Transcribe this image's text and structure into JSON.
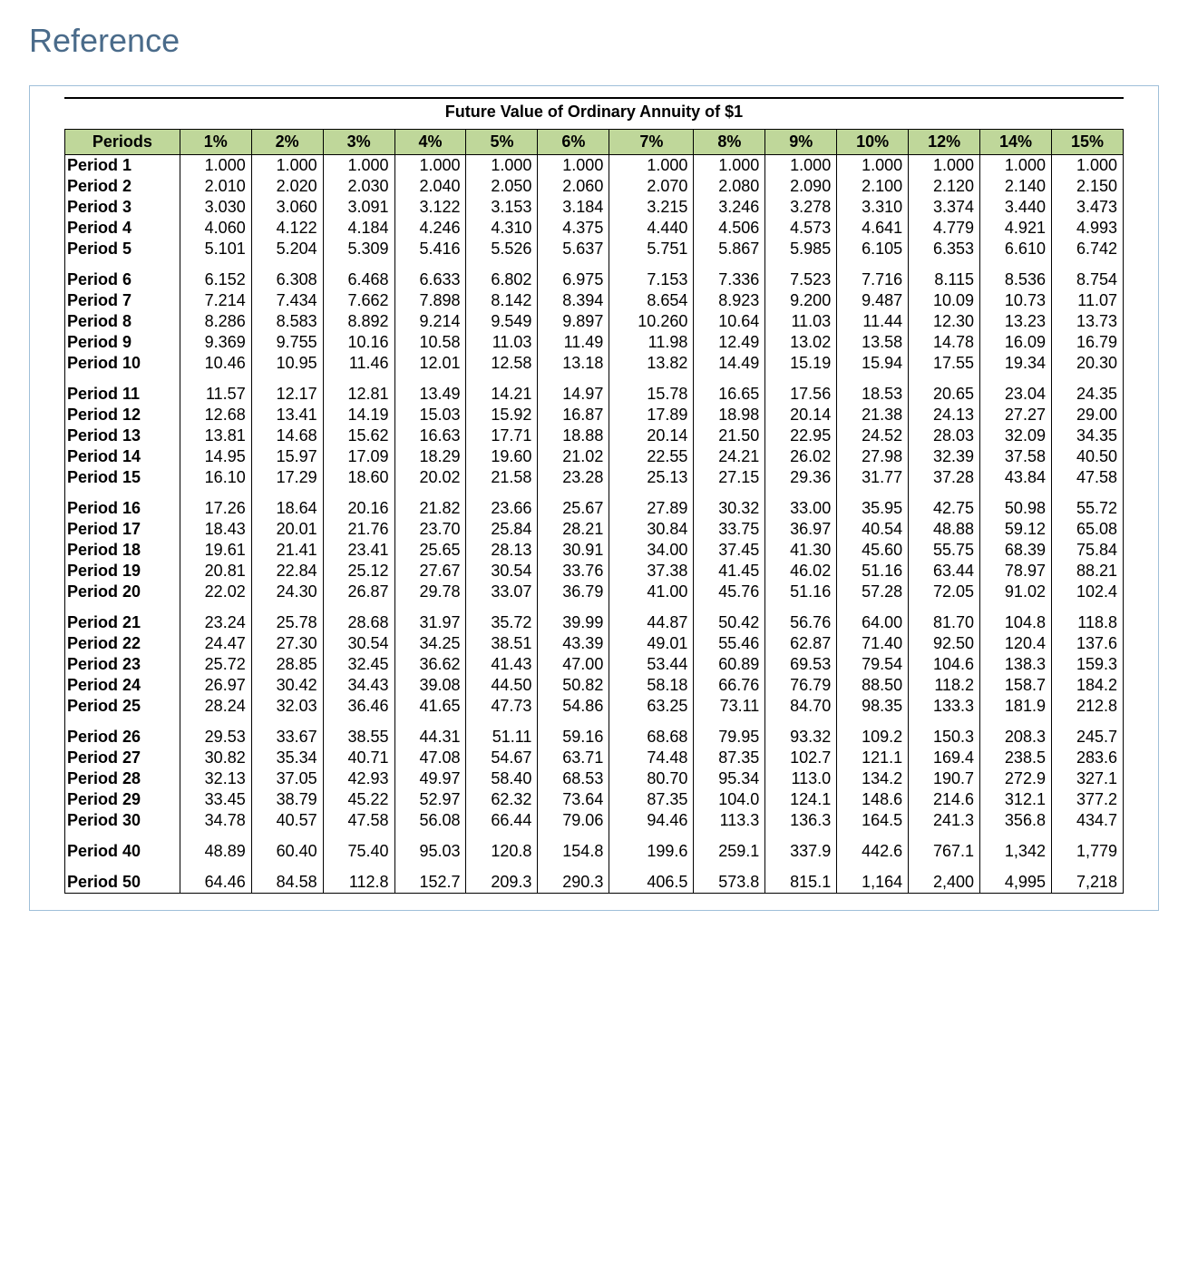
{
  "page_heading": "Reference",
  "table": {
    "title": "Future Value of Ordinary Annuity of $1",
    "header_bg": "#bfd79a",
    "periods_header": "Periods",
    "columns": [
      "1%",
      "2%",
      "3%",
      "4%",
      "5%",
      "6%",
      "7%",
      "8%",
      "9%",
      "10%",
      "12%",
      "14%",
      "15%"
    ],
    "groups": [
      [
        {
          "label": "Period 1",
          "values": [
            "1.000",
            "1.000",
            "1.000",
            "1.000",
            "1.000",
            "1.000",
            "1.000",
            "1.000",
            "1.000",
            "1.000",
            "1.000",
            "1.000",
            "1.000"
          ]
        },
        {
          "label": "Period 2",
          "values": [
            "2.010",
            "2.020",
            "2.030",
            "2.040",
            "2.050",
            "2.060",
            "2.070",
            "2.080",
            "2.090",
            "2.100",
            "2.120",
            "2.140",
            "2.150"
          ]
        },
        {
          "label": "Period 3",
          "values": [
            "3.030",
            "3.060",
            "3.091",
            "3.122",
            "3.153",
            "3.184",
            "3.215",
            "3.246",
            "3.278",
            "3.310",
            "3.374",
            "3.440",
            "3.473"
          ]
        },
        {
          "label": "Period 4",
          "values": [
            "4.060",
            "4.122",
            "4.184",
            "4.246",
            "4.310",
            "4.375",
            "4.440",
            "4.506",
            "4.573",
            "4.641",
            "4.779",
            "4.921",
            "4.993"
          ]
        },
        {
          "label": "Period 5",
          "values": [
            "5.101",
            "5.204",
            "5.309",
            "5.416",
            "5.526",
            "5.637",
            "5.751",
            "5.867",
            "5.985",
            "6.105",
            "6.353",
            "6.610",
            "6.742"
          ]
        }
      ],
      [
        {
          "label": "Period 6",
          "values": [
            "6.152",
            "6.308",
            "6.468",
            "6.633",
            "6.802",
            "6.975",
            "7.153",
            "7.336",
            "7.523",
            "7.716",
            "8.115",
            "8.536",
            "8.754"
          ]
        },
        {
          "label": "Period 7",
          "values": [
            "7.214",
            "7.434",
            "7.662",
            "7.898",
            "8.142",
            "8.394",
            "8.654",
            "8.923",
            "9.200",
            "9.487",
            "10.09",
            "10.73",
            "11.07"
          ]
        },
        {
          "label": "Period 8",
          "values": [
            "8.286",
            "8.583",
            "8.892",
            "9.214",
            "9.549",
            "9.897",
            "10.260",
            "10.64",
            "11.03",
            "11.44",
            "12.30",
            "13.23",
            "13.73"
          ]
        },
        {
          "label": "Period 9",
          "values": [
            "9.369",
            "9.755",
            "10.16",
            "10.58",
            "11.03",
            "11.49",
            "11.98",
            "12.49",
            "13.02",
            "13.58",
            "14.78",
            "16.09",
            "16.79"
          ]
        },
        {
          "label": "Period 10",
          "values": [
            "10.46",
            "10.95",
            "11.46",
            "12.01",
            "12.58",
            "13.18",
            "13.82",
            "14.49",
            "15.19",
            "15.94",
            "17.55",
            "19.34",
            "20.30"
          ]
        }
      ],
      [
        {
          "label": "Period 11",
          "values": [
            "11.57",
            "12.17",
            "12.81",
            "13.49",
            "14.21",
            "14.97",
            "15.78",
            "16.65",
            "17.56",
            "18.53",
            "20.65",
            "23.04",
            "24.35"
          ]
        },
        {
          "label": "Period 12",
          "values": [
            "12.68",
            "13.41",
            "14.19",
            "15.03",
            "15.92",
            "16.87",
            "17.89",
            "18.98",
            "20.14",
            "21.38",
            "24.13",
            "27.27",
            "29.00"
          ]
        },
        {
          "label": "Period 13",
          "values": [
            "13.81",
            "14.68",
            "15.62",
            "16.63",
            "17.71",
            "18.88",
            "20.14",
            "21.50",
            "22.95",
            "24.52",
            "28.03",
            "32.09",
            "34.35"
          ]
        },
        {
          "label": "Period 14",
          "values": [
            "14.95",
            "15.97",
            "17.09",
            "18.29",
            "19.60",
            "21.02",
            "22.55",
            "24.21",
            "26.02",
            "27.98",
            "32.39",
            "37.58",
            "40.50"
          ]
        },
        {
          "label": "Period 15",
          "values": [
            "16.10",
            "17.29",
            "18.60",
            "20.02",
            "21.58",
            "23.28",
            "25.13",
            "27.15",
            "29.36",
            "31.77",
            "37.28",
            "43.84",
            "47.58"
          ]
        }
      ],
      [
        {
          "label": "Period 16",
          "values": [
            "17.26",
            "18.64",
            "20.16",
            "21.82",
            "23.66",
            "25.67",
            "27.89",
            "30.32",
            "33.00",
            "35.95",
            "42.75",
            "50.98",
            "55.72"
          ]
        },
        {
          "label": "Period 17",
          "values": [
            "18.43",
            "20.01",
            "21.76",
            "23.70",
            "25.84",
            "28.21",
            "30.84",
            "33.75",
            "36.97",
            "40.54",
            "48.88",
            "59.12",
            "65.08"
          ]
        },
        {
          "label": "Period 18",
          "values": [
            "19.61",
            "21.41",
            "23.41",
            "25.65",
            "28.13",
            "30.91",
            "34.00",
            "37.45",
            "41.30",
            "45.60",
            "55.75",
            "68.39",
            "75.84"
          ]
        },
        {
          "label": "Period 19",
          "values": [
            "20.81",
            "22.84",
            "25.12",
            "27.67",
            "30.54",
            "33.76",
            "37.38",
            "41.45",
            "46.02",
            "51.16",
            "63.44",
            "78.97",
            "88.21"
          ]
        },
        {
          "label": "Period 20",
          "values": [
            "22.02",
            "24.30",
            "26.87",
            "29.78",
            "33.07",
            "36.79",
            "41.00",
            "45.76",
            "51.16",
            "57.28",
            "72.05",
            "91.02",
            "102.4"
          ]
        }
      ],
      [
        {
          "label": "Period 21",
          "values": [
            "23.24",
            "25.78",
            "28.68",
            "31.97",
            "35.72",
            "39.99",
            "44.87",
            "50.42",
            "56.76",
            "64.00",
            "81.70",
            "104.8",
            "118.8"
          ]
        },
        {
          "label": "Period 22",
          "values": [
            "24.47",
            "27.30",
            "30.54",
            "34.25",
            "38.51",
            "43.39",
            "49.01",
            "55.46",
            "62.87",
            "71.40",
            "92.50",
            "120.4",
            "137.6"
          ]
        },
        {
          "label": "Period 23",
          "values": [
            "25.72",
            "28.85",
            "32.45",
            "36.62",
            "41.43",
            "47.00",
            "53.44",
            "60.89",
            "69.53",
            "79.54",
            "104.6",
            "138.3",
            "159.3"
          ]
        },
        {
          "label": "Period 24",
          "values": [
            "26.97",
            "30.42",
            "34.43",
            "39.08",
            "44.50",
            "50.82",
            "58.18",
            "66.76",
            "76.79",
            "88.50",
            "118.2",
            "158.7",
            "184.2"
          ]
        },
        {
          "label": "Period 25",
          "values": [
            "28.24",
            "32.03",
            "36.46",
            "41.65",
            "47.73",
            "54.86",
            "63.25",
            "73.11",
            "84.70",
            "98.35",
            "133.3",
            "181.9",
            "212.8"
          ]
        }
      ],
      [
        {
          "label": "Period 26",
          "values": [
            "29.53",
            "33.67",
            "38.55",
            "44.31",
            "51.11",
            "59.16",
            "68.68",
            "79.95",
            "93.32",
            "109.2",
            "150.3",
            "208.3",
            "245.7"
          ]
        },
        {
          "label": "Period 27",
          "values": [
            "30.82",
            "35.34",
            "40.71",
            "47.08",
            "54.67",
            "63.71",
            "74.48",
            "87.35",
            "102.7",
            "121.1",
            "169.4",
            "238.5",
            "283.6"
          ]
        },
        {
          "label": "Period 28",
          "values": [
            "32.13",
            "37.05",
            "42.93",
            "49.97",
            "58.40",
            "68.53",
            "80.70",
            "95.34",
            "113.0",
            "134.2",
            "190.7",
            "272.9",
            "327.1"
          ]
        },
        {
          "label": "Period 29",
          "values": [
            "33.45",
            "38.79",
            "45.22",
            "52.97",
            "62.32",
            "73.64",
            "87.35",
            "104.0",
            "124.1",
            "148.6",
            "214.6",
            "312.1",
            "377.2"
          ]
        },
        {
          "label": "Period 30",
          "values": [
            "34.78",
            "40.57",
            "47.58",
            "56.08",
            "66.44",
            "79.06",
            "94.46",
            "113.3",
            "136.3",
            "164.5",
            "241.3",
            "356.8",
            "434.7"
          ]
        }
      ],
      [
        {
          "label": "Period 40",
          "values": [
            "48.89",
            "60.40",
            "75.40",
            "95.03",
            "120.8",
            "154.8",
            "199.6",
            "259.1",
            "337.9",
            "442.6",
            "767.1",
            "1,342",
            "1,779"
          ]
        }
      ],
      [
        {
          "label": "Period 50",
          "values": [
            "64.46",
            "84.58",
            "112.8",
            "152.7",
            "209.3",
            "290.3",
            "406.5",
            "573.8",
            "815.1",
            "1,164",
            "2,400",
            "4,995",
            "7,218"
          ]
        }
      ]
    ]
  }
}
